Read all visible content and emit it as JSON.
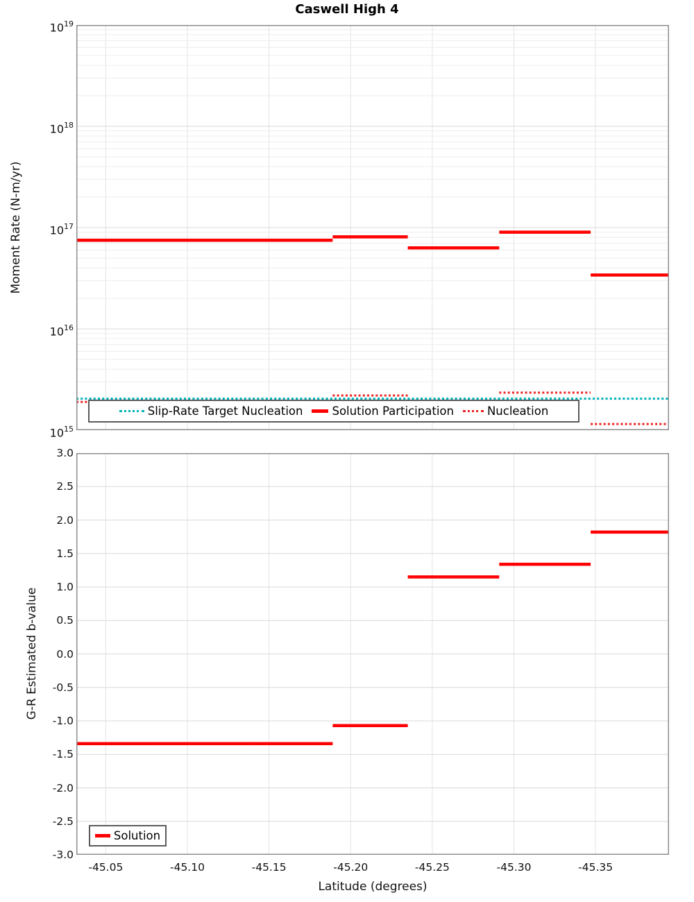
{
  "figure_title": "Caswell High 4",
  "colors": {
    "solution": "#ff0000",
    "target": "#00b4ba",
    "nucleation": "#ee2222",
    "nucleation_faded": "#ffb3b3",
    "grid_major": "#d9d9d9",
    "grid_minor": "#ededed",
    "grid_vertical": "#e3e3e3",
    "plot_border": "#8c8c8c"
  },
  "chart_data": [
    {
      "type": "line",
      "subtype": "horizontal-step-segments",
      "title": "Caswell High 4",
      "ylabel": "Moment Rate (N-m/yr)",
      "xlabel": "",
      "yscale": "log",
      "ylim": [
        1000000000000000.0,
        1e+19
      ],
      "xlim": [
        -45.032,
        -45.395
      ],
      "grid": true,
      "legend_position": "bottom-inside",
      "y_tick_base": "10",
      "y_tick_exponents": [
        19,
        18,
        17,
        16,
        15
      ],
      "x_tick_values": [
        -45.05,
        -45.1,
        -45.15,
        -45.2,
        -45.25,
        -45.3,
        -45.35
      ],
      "x_tick_labels": [
        "-45.05",
        "-45.10",
        "-45.15",
        "-45.20",
        "-45.25",
        "-45.30",
        "-45.35"
      ],
      "segment_edges": [
        -45.032,
        -45.083,
        -45.141,
        -45.189,
        -45.235,
        -45.291,
        -45.347,
        -45.395
      ],
      "series": [
        {
          "name": "Slip-Rate Target Nucleation",
          "style": "dotted",
          "color": "#00b4ba",
          "values": [
            2050000000000000.0,
            2050000000000000.0,
            2050000000000000.0,
            2050000000000000.0,
            2050000000000000.0,
            2050000000000000.0,
            2050000000000000.0
          ]
        },
        {
          "name": "Nucleation",
          "style": "dotted",
          "color": "#ee2222",
          "values": [
            1900000000000000.0,
            1900000000000000.0,
            1900000000000000.0,
            2200000000000000.0,
            1850000000000000.0,
            2350000000000000.0,
            1150000000000000.0
          ],
          "faded_segments": [
            4
          ],
          "faded_color": "#ffb3b3"
        },
        {
          "name": "Solution Participation",
          "style": "solid",
          "color": "#ff0000",
          "values": [
            7.5e+16,
            7.5e+16,
            7.5e+16,
            8.1e+16,
            6.3e+16,
            9e+16,
            3.4e+16
          ]
        }
      ]
    },
    {
      "type": "line",
      "subtype": "horizontal-step-segments",
      "title": "",
      "ylabel": "G-R Estimated b-value",
      "xlabel": "Latitude (degrees)",
      "yscale": "linear",
      "ylim": [
        -3.0,
        3.0
      ],
      "xlim": [
        -45.032,
        -45.395
      ],
      "grid": true,
      "legend_position": "bottom-left-inside",
      "y_tick_values": [
        3.0,
        2.5,
        2.0,
        1.5,
        1.0,
        0.5,
        0.0,
        -0.5,
        -1.0,
        -1.5,
        -2.0,
        -2.5,
        -3.0
      ],
      "y_tick_labels": [
        "3.0",
        "2.5",
        "2.0",
        "1.5",
        "1.0",
        "0.5",
        "0.0",
        "-0.5",
        "-1.0",
        "-1.5",
        "-2.0",
        "-2.5",
        "-3.0"
      ],
      "x_tick_values": [
        -45.05,
        -45.1,
        -45.15,
        -45.2,
        -45.25,
        -45.3,
        -45.35
      ],
      "x_tick_labels": [
        "-45.05",
        "-45.10",
        "-45.15",
        "-45.20",
        "-45.25",
        "-45.30",
        "-45.35"
      ],
      "segment_edges": [
        -45.032,
        -45.083,
        -45.141,
        -45.189,
        -45.235,
        -45.291,
        -45.347,
        -45.395
      ],
      "series": [
        {
          "name": "Solution",
          "style": "solid",
          "color": "#ff0000",
          "values": [
            -1.34,
            -1.34,
            -1.34,
            -1.07,
            1.15,
            1.34,
            1.82
          ]
        }
      ]
    }
  ]
}
